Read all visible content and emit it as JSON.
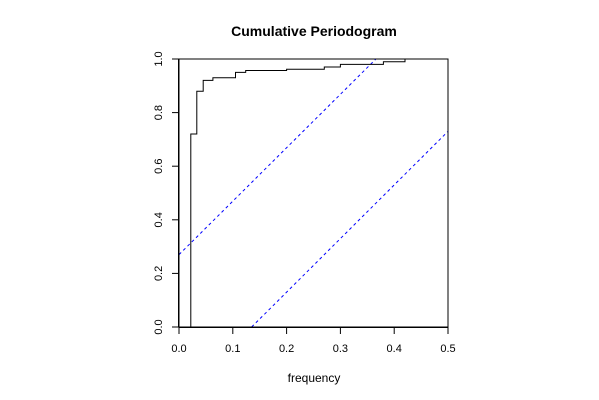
{
  "chart_data": {
    "type": "line",
    "title": "Cumulative Periodogram",
    "xlabel": "frequency",
    "ylabel": "",
    "xlim": [
      0,
      0.5
    ],
    "ylim": [
      0,
      1
    ],
    "x_ticks": [
      "0.0",
      "0.1",
      "0.2",
      "0.3",
      "0.4",
      "0.5"
    ],
    "y_ticks": [
      "0.0",
      "0.2",
      "0.4",
      "0.6",
      "0.8",
      "1.0"
    ],
    "grid": false,
    "legend": "none",
    "series": [
      {
        "style": "step",
        "color": "#000000",
        "x": [
          0.0,
          0.022,
          0.022,
          0.033,
          0.033,
          0.045,
          0.045,
          0.063,
          0.063,
          0.105,
          0.105,
          0.124,
          0.124,
          0.2,
          0.2,
          0.27,
          0.27,
          0.3,
          0.3,
          0.38,
          0.38,
          0.42,
          0.42,
          0.5
        ],
        "y": [
          0.0,
          0.0,
          0.72,
          0.72,
          0.88,
          0.88,
          0.92,
          0.92,
          0.93,
          0.93,
          0.95,
          0.95,
          0.957,
          0.957,
          0.962,
          0.962,
          0.97,
          0.97,
          0.98,
          0.98,
          0.99,
          0.99,
          1.0,
          1.0
        ]
      }
    ],
    "reference_lines": [
      {
        "style": "dashed",
        "color": "#0000ff",
        "x": [
          0.0,
          0.366
        ],
        "y": [
          0.27,
          1.0
        ]
      },
      {
        "style": "dashed",
        "color": "#0000ff",
        "x": [
          0.135,
          0.5
        ],
        "y": [
          0.0,
          0.73
        ]
      }
    ]
  }
}
